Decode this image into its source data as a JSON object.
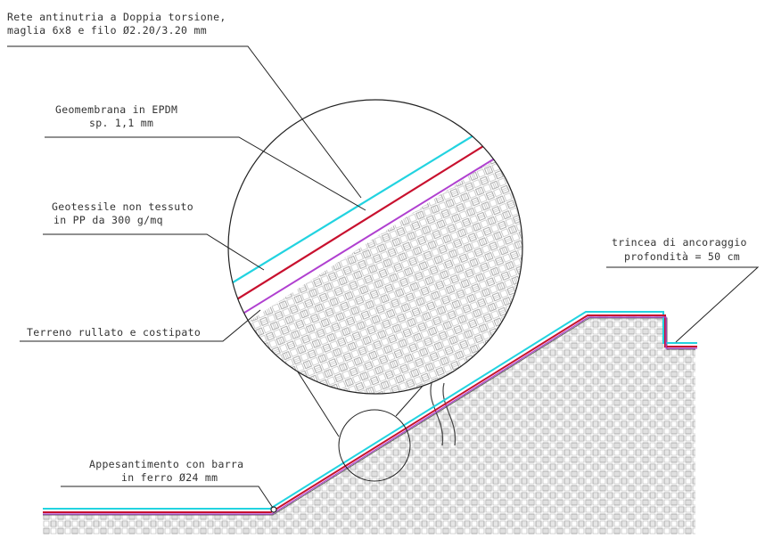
{
  "labels": {
    "rete_line1": "Rete antinutria a Doppia torsione,",
    "rete_line2": "maglia 6x8 e filo Ø2.20/3.20 mm",
    "geomembrana_line1": "Geomembrana in EPDM",
    "geomembrana_line2": "sp. 1,1 mm",
    "geotessile_line1": "Geotessile non tessuto",
    "geotessile_line2": "in PP da 300 g/mq",
    "terreno": "Terreno rullato e costipato",
    "trincea_line1": "trincea di ancoraggio",
    "trincea_line2": "profondità = 50 cm",
    "appesantimento_line1": "Appesantimento con barra",
    "appesantimento_line2": "in ferro Ø24 mm"
  },
  "colors": {
    "rete": "#22d3e0",
    "geomembrana": "#c8102e",
    "geotessile": "#b040d0",
    "soil_hatch": "#8a8a8a",
    "leader": "#222222"
  }
}
